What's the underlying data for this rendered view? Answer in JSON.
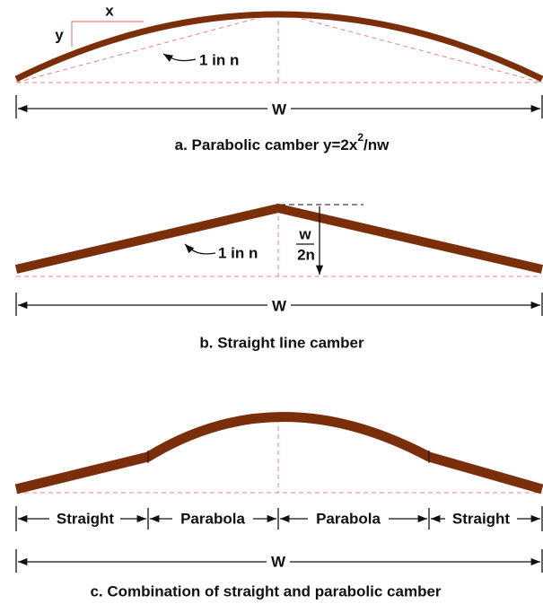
{
  "panel_a": {
    "x_label": "x",
    "y_label": "y",
    "slope_label": "1 in n",
    "width_label": "W",
    "caption": "a. Parabolic camber  y=2x",
    "caption_superscript": "2",
    "caption_tail": "/nw"
  },
  "panel_b": {
    "slope_label": "1 in n",
    "rise_numerator": "w",
    "rise_denominator": "2n",
    "width_label": "W",
    "caption": "b. Straight line camber"
  },
  "panel_c": {
    "segments": [
      "Straight",
      "Parabola",
      "Parabola",
      "Straight"
    ],
    "width_label": "W",
    "caption": "c. Combination of straight and parabolic camber"
  }
}
